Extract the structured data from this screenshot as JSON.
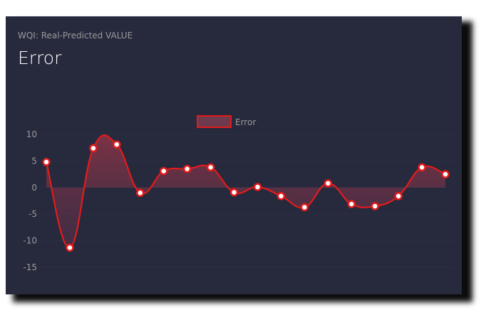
{
  "card": {
    "subtitle": "WQI: Real-Predicted VALUE",
    "title": "Error"
  },
  "colors": {
    "background": "#27293d",
    "line": "#e31b1b",
    "point_fill": "#ffffff",
    "tick_text": "#9a9a9a"
  },
  "chart_data": {
    "type": "line",
    "title": "",
    "xlabel": "",
    "ylabel": "",
    "ylim": [
      -15,
      10
    ],
    "yticks": [
      10,
      5,
      0,
      -5,
      -10,
      -15
    ],
    "grid": true,
    "legend_position": "top-center",
    "smooth": true,
    "filled": true,
    "series": [
      {
        "name": "Error",
        "values": [
          4.8,
          -11.3,
          7.4,
          8.1,
          -1.0,
          3.1,
          3.5,
          3.8,
          -0.9,
          0.1,
          -1.6,
          -3.7,
          0.8,
          -3.1,
          -3.5,
          -1.6,
          3.8,
          2.5
        ]
      }
    ]
  }
}
